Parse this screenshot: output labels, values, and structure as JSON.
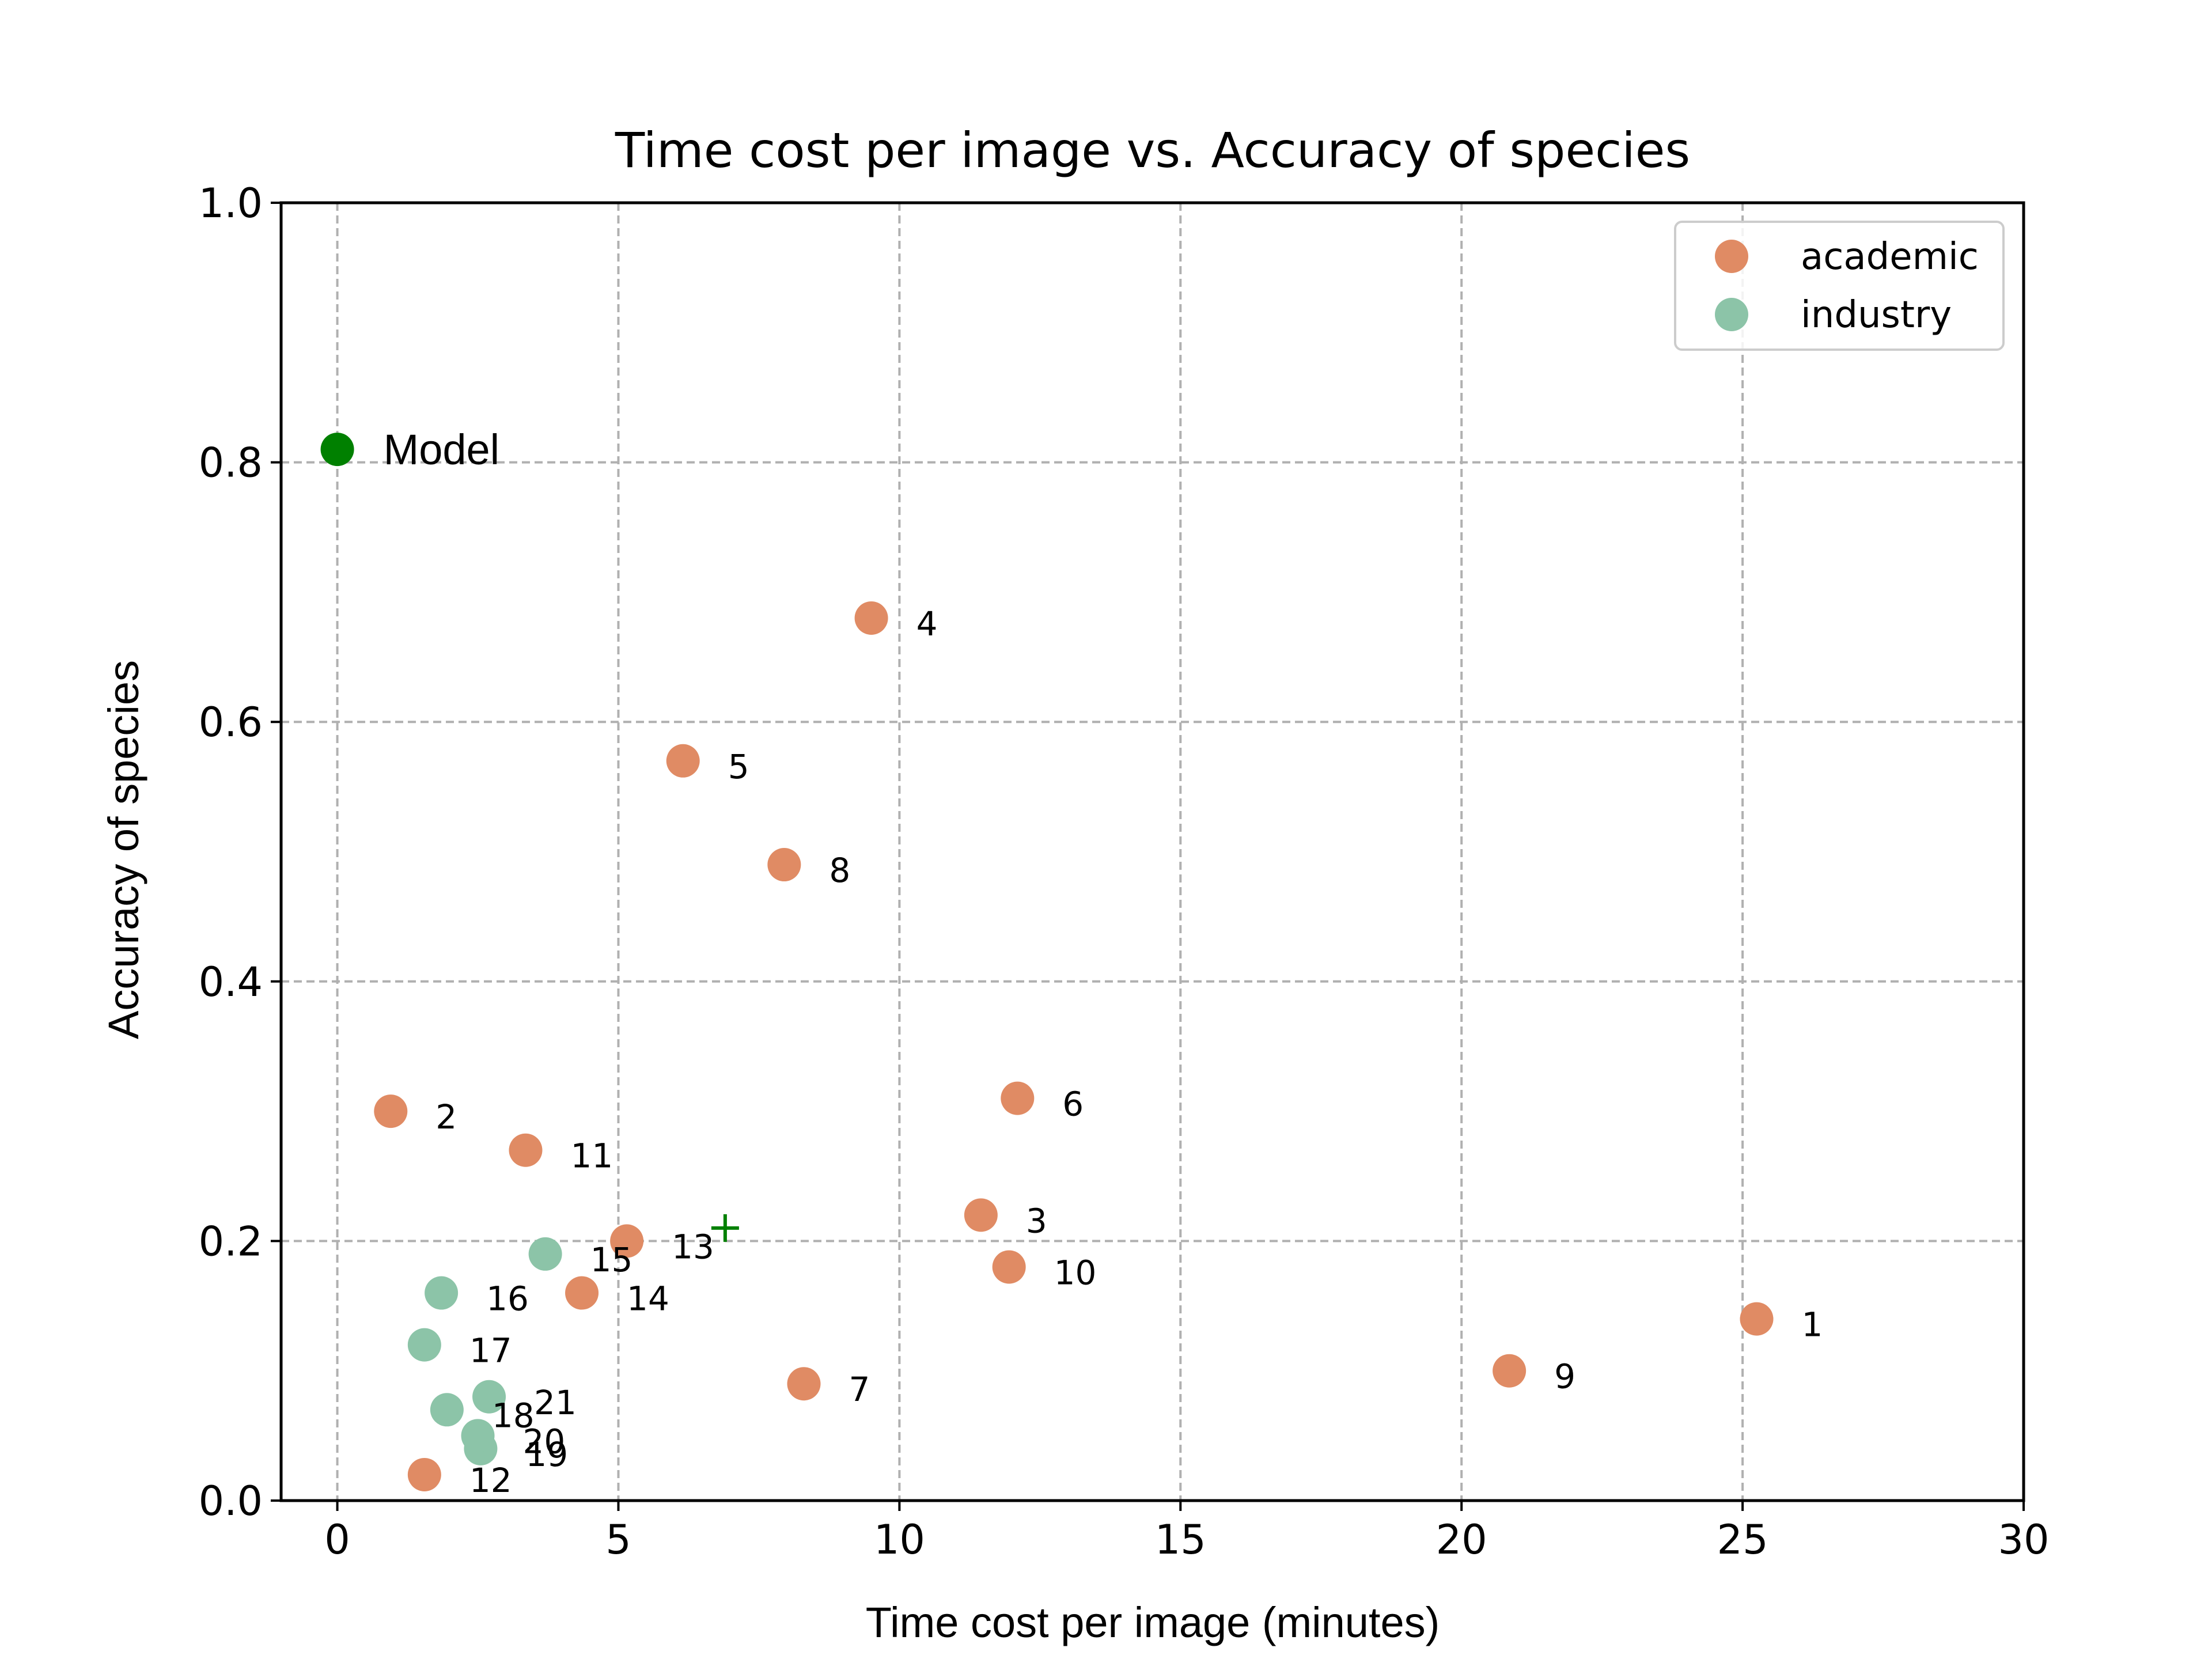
{
  "chart_data": {
    "type": "scatter",
    "title": "Time cost per image vs. Accuracy of species",
    "xlabel": "Time cost per image (minutes)",
    "ylabel": "Accuracy of species",
    "xlim": [
      -1,
      30
    ],
    "ylim": [
      0.0,
      1.0
    ],
    "xticks": [
      0,
      5,
      10,
      15,
      20,
      25,
      30
    ],
    "xtick_labels": [
      "0",
      "5",
      "10",
      "15",
      "20",
      "25",
      "30"
    ],
    "yticks": [
      0.0,
      0.2,
      0.4,
      0.6,
      0.8,
      1.0
    ],
    "ytick_labels": [
      "0.0",
      "0.2",
      "0.4",
      "0.6",
      "0.8",
      "1.0"
    ],
    "grid": true,
    "legend_position": "top-right",
    "series": [
      {
        "name": "academic",
        "color": "#e08b64",
        "points": [
          {
            "label": "1",
            "x": 25.25,
            "y": 0.14
          },
          {
            "label": "2",
            "x": 0.95,
            "y": 0.3
          },
          {
            "label": "3",
            "x": 11.45,
            "y": 0.22
          },
          {
            "label": "4",
            "x": 9.5,
            "y": 0.68
          },
          {
            "label": "5",
            "x": 6.15,
            "y": 0.57
          },
          {
            "label": "6",
            "x": 12.1,
            "y": 0.31
          },
          {
            "label": "7",
            "x": 8.3,
            "y": 0.09
          },
          {
            "label": "8",
            "x": 7.95,
            "y": 0.49
          },
          {
            "label": "9",
            "x": 20.85,
            "y": 0.1
          },
          {
            "label": "10",
            "x": 11.95,
            "y": 0.18
          },
          {
            "label": "11",
            "x": 3.35,
            "y": 0.27
          },
          {
            "label": "12",
            "x": 1.55,
            "y": 0.02
          },
          {
            "label": "13",
            "x": 5.15,
            "y": 0.2
          },
          {
            "label": "14",
            "x": 4.35,
            "y": 0.16
          }
        ]
      },
      {
        "name": "industry",
        "color": "#8cc4a8",
        "points": [
          {
            "label": "15",
            "x": 3.7,
            "y": 0.19
          },
          {
            "label": "16",
            "x": 1.85,
            "y": 0.16
          },
          {
            "label": "17",
            "x": 1.55,
            "y": 0.12
          },
          {
            "label": "18",
            "x": 1.95,
            "y": 0.07
          },
          {
            "label": "19",
            "x": 2.55,
            "y": 0.04
          },
          {
            "label": "20",
            "x": 2.5,
            "y": 0.05
          },
          {
            "label": "21",
            "x": 2.7,
            "y": 0.08
          }
        ]
      }
    ],
    "model_point": {
      "label": "Model",
      "x": 0.0,
      "y": 0.81,
      "color": "#008000"
    },
    "cross_marker": {
      "x": 6.9,
      "y": 0.21,
      "color": "#008000"
    }
  }
}
